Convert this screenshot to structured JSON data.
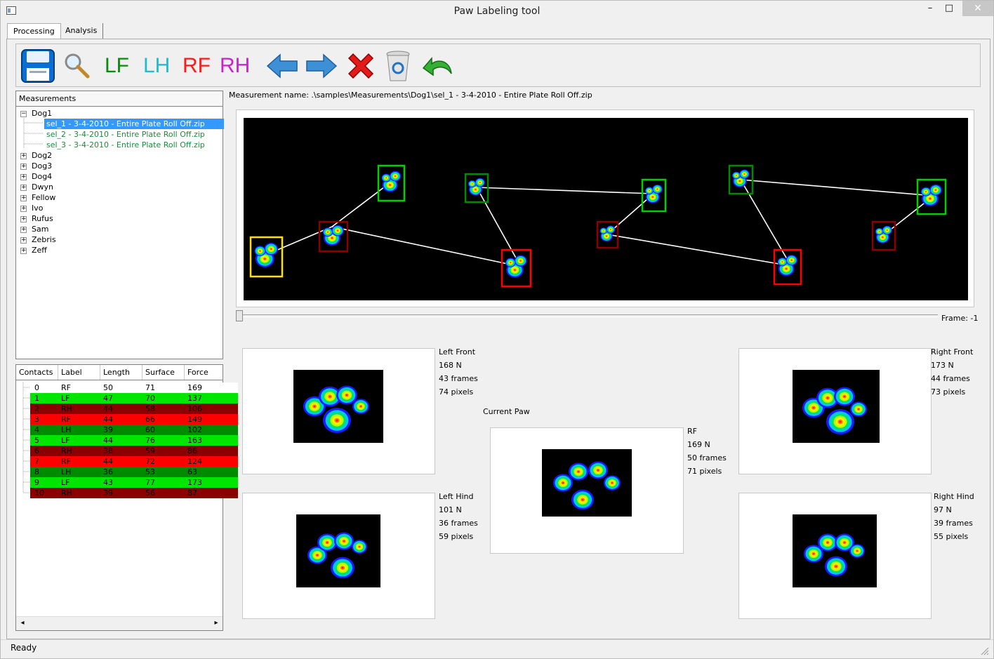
{
  "window": {
    "title": "Paw Labeling tool",
    "minimize": "–",
    "maximize": "□",
    "close": "✕"
  },
  "tabs": [
    {
      "label": "Processing"
    },
    {
      "label": "Analysis"
    }
  ],
  "toolbar": {
    "lf": "LF",
    "lh": "LH",
    "rf": "RF",
    "rh": "RH",
    "colors": {
      "lf": "#0a8a0a",
      "lh": "#1fbccb",
      "rf": "#ff1a1a",
      "rh": "#cc22cc"
    }
  },
  "measurements": {
    "header": "Measurements",
    "tree": [
      {
        "label": "Dog1",
        "expanded": true,
        "children": [
          "sel_1 - 3-4-2010 - Entire Plate Roll Off.zip",
          "sel_2 - 3-4-2010 - Entire Plate Roll Off.zip",
          "sel_3 - 3-4-2010 - Entire Plate Roll Off.zip"
        ]
      },
      {
        "label": "Dog2"
      },
      {
        "label": "Dog3"
      },
      {
        "label": "Dog4"
      },
      {
        "label": "Dwyn"
      },
      {
        "label": "Fellow"
      },
      {
        "label": "Ivo"
      },
      {
        "label": "Rufus"
      },
      {
        "label": "Sam"
      },
      {
        "label": "Zebris"
      },
      {
        "label": "Zeff"
      }
    ],
    "expand_plus": "+",
    "expand_minus": "−"
  },
  "contacts": {
    "columns": [
      "Contacts",
      "Label",
      "Length",
      "Surface",
      "Force"
    ],
    "rows": [
      {
        "id": "0",
        "label": "RF",
        "length": "50",
        "surface": "71",
        "force": "169",
        "color": "#ffffff"
      },
      {
        "id": "1",
        "label": "LF",
        "length": "47",
        "surface": "70",
        "force": "137",
        "color": "#00e600"
      },
      {
        "id": "2",
        "label": "RH",
        "length": "44",
        "surface": "58",
        "force": "106",
        "color": "#8b0000"
      },
      {
        "id": "3",
        "label": "RF",
        "length": "44",
        "surface": "66",
        "force": "149",
        "color": "#ff0000"
      },
      {
        "id": "4",
        "label": "LH",
        "length": "39",
        "surface": "60",
        "force": "102",
        "color": "#008a00"
      },
      {
        "id": "5",
        "label": "LF",
        "length": "44",
        "surface": "76",
        "force": "163",
        "color": "#00e600"
      },
      {
        "id": "6",
        "label": "RH",
        "length": "38",
        "surface": "59",
        "force": "86",
        "color": "#8b0000"
      },
      {
        "id": "7",
        "label": "RF",
        "length": "44",
        "surface": "72",
        "force": "124",
        "color": "#ff0000"
      },
      {
        "id": "8",
        "label": "LH",
        "length": "36",
        "surface": "53",
        "force": "63",
        "color": "#008a00"
      },
      {
        "id": "9",
        "label": "LF",
        "length": "43",
        "surface": "77",
        "force": "173",
        "color": "#00e600"
      },
      {
        "id": "10",
        "label": "RH",
        "length": "39",
        "surface": "56",
        "force": "87",
        "color": "#8b0000"
      }
    ],
    "scroll_left": "◂",
    "scroll_right": "▸"
  },
  "measurement_name": "Measurement name:  .\\samples\\Measurements\\Dog1\\sel_1 - 3-4-2010 - Entire Plate Roll Off.zip",
  "frame_label": "Frame: -1",
  "paws": {
    "lf": {
      "title": "Left Front",
      "force": "168 N",
      "frames": "43 frames",
      "pixels": "74 pixels"
    },
    "lh": {
      "title": "Left Hind",
      "force": "101 N",
      "frames": "36 frames",
      "pixels": "59 pixels"
    },
    "rf": {
      "title": "Right Front",
      "force": "173 N",
      "frames": "44 frames",
      "pixels": "73 pixels"
    },
    "rh": {
      "title": "Right Hind",
      "force": "97 N",
      "frames": "39 frames",
      "pixels": "55 pixels"
    },
    "current": {
      "heading": "Current Paw",
      "title": "RF",
      "force": "169 N",
      "frames": "50 frames",
      "pixels": "71 pixels"
    }
  },
  "status": "Ready"
}
